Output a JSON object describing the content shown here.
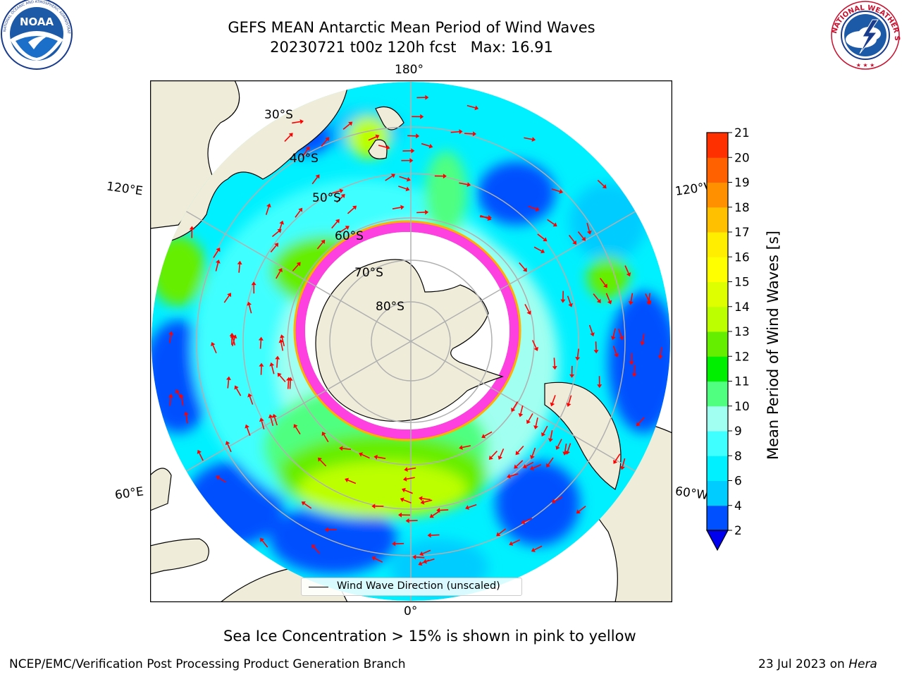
{
  "title": {
    "line1": "GEFS MEAN Antarctic Mean Period of Wind Waves",
    "line2": "20230721 t00z 120h fcst   Max: 16.91"
  },
  "logos": {
    "left": {
      "text": "NOAA",
      "ring_text": "NATIONAL OCEANIC AND ATMOSPHERIC ADMINISTRATION · U.S. DEPARTMENT OF COMMERCE",
      "icon": "noaa-logo"
    },
    "right": {
      "ring_text": "NATIONAL WEATHER SERVICE",
      "icon": "nws-logo"
    }
  },
  "map": {
    "projection": "south-polar-stereographic",
    "longitude_labels": {
      "top": "180°",
      "bottom": "0°",
      "upper_left": "120°E",
      "upper_right": "120°W",
      "lower_left": "60°E",
      "lower_right": "60°W"
    },
    "latitude_labels": [
      "30°S",
      "40°S",
      "50°S",
      "60°S",
      "70°S",
      "80°S"
    ],
    "colors": {
      "land": "#efedd9",
      "ocean_low": "#00f0ff",
      "ice": "#ff40e0",
      "ice_edge": "#ffb000",
      "gridline": "#b0b0b0",
      "arrow": "#ff0000"
    },
    "legend": {
      "label": "Wind Wave Direction (unscaled)"
    }
  },
  "colorbar": {
    "label": "Mean Period of Wind Waves [s]",
    "ticks": [
      "2",
      "4",
      "6",
      "8",
      "9",
      "10",
      "11",
      "12",
      "13",
      "14",
      "15",
      "16",
      "17",
      "18",
      "19",
      "20",
      "21"
    ],
    "colors": [
      "#0050ff",
      "#00ccff",
      "#00f0ff",
      "#40ffff",
      "#a0fff0",
      "#50ff80",
      "#00ee00",
      "#66ee00",
      "#bbff00",
      "#ddff00",
      "#ffff00",
      "#ffee00",
      "#ffc000",
      "#ff9000",
      "#ff6000",
      "#ff3000"
    ],
    "extend_color": "#0000ee"
  },
  "notes": {
    "sea_ice": "Sea Ice Concentration > 15% is shown in pink to yellow"
  },
  "footer": {
    "left": "NCEP/EMC/Verification Post Processing Product Generation Branch",
    "right_date": "23 Jul 2023 on ",
    "right_host": "Hera"
  }
}
